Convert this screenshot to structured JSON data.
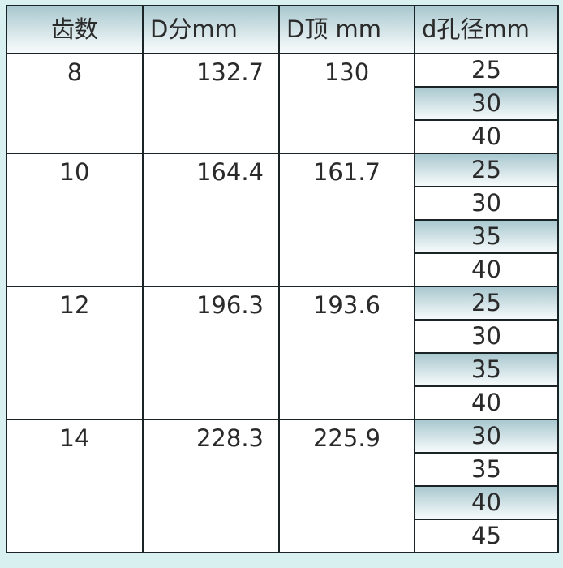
{
  "headers": [
    "齿数",
    "D分mm",
    "D顶 mm",
    "d孔径mm"
  ],
  "groups": [
    {
      "teeth": "8",
      "d_pitch": "132.7",
      "d_top": "130",
      "bores": [
        {
          "v": "25",
          "shaded": false
        },
        {
          "v": "30",
          "shaded": true
        },
        {
          "v": "40",
          "shaded": false
        }
      ]
    },
    {
      "teeth": "10",
      "d_pitch": "164.4",
      "d_top": "161.7",
      "bores": [
        {
          "v": "25",
          "shaded": true
        },
        {
          "v": "30",
          "shaded": false
        },
        {
          "v": "35",
          "shaded": true
        },
        {
          "v": "40",
          "shaded": false
        }
      ]
    },
    {
      "teeth": "12",
      "d_pitch": "196.3",
      "d_top": "193.6",
      "bores": [
        {
          "v": "25",
          "shaded": true
        },
        {
          "v": "30",
          "shaded": false
        },
        {
          "v": "35",
          "shaded": true
        },
        {
          "v": "40",
          "shaded": false
        }
      ]
    },
    {
      "teeth": "14",
      "d_pitch": "228.3",
      "d_top": "225.9",
      "bores": [
        {
          "v": "30",
          "shaded": true
        },
        {
          "v": "35",
          "shaded": false
        },
        {
          "v": "40",
          "shaded": true
        },
        {
          "v": "45",
          "shaded": false
        }
      ]
    }
  ],
  "colors": {
    "header_gradient_top": "#a9c8cf",
    "background": "#d9f0f0",
    "border": "#1a2426"
  }
}
